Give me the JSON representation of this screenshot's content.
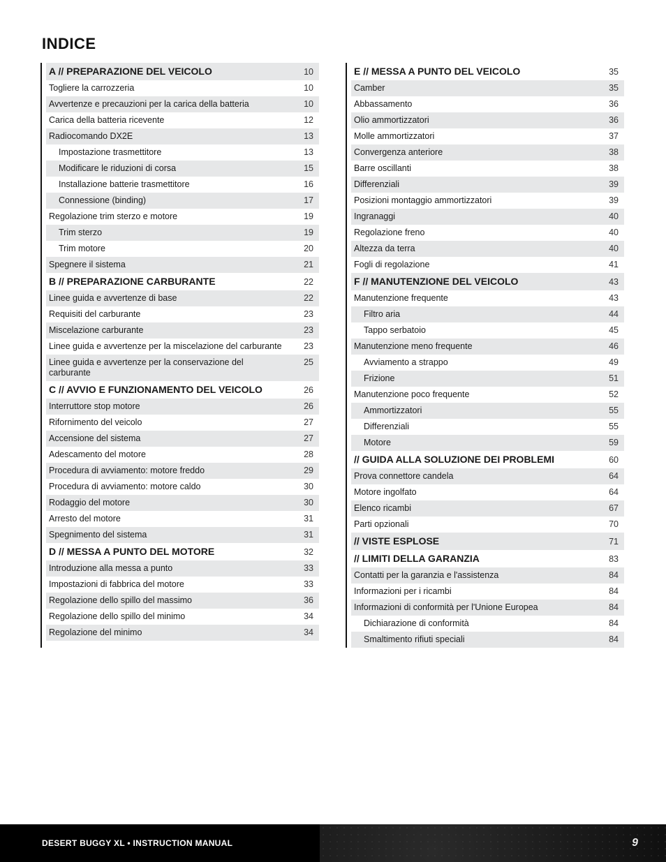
{
  "title": "INDICE",
  "footer": {
    "left": "DESERT BUGGY XL • INSTRUCTION MANUAL",
    "page": "9"
  },
  "left": [
    {
      "section": true,
      "shade": true,
      "indent": 0,
      "label": "A // PREPARAZIONE DEL VEICOLO",
      "page": "10"
    },
    {
      "section": false,
      "shade": false,
      "indent": 1,
      "label": "Togliere la carrozzeria",
      "page": "10"
    },
    {
      "section": false,
      "shade": true,
      "indent": 1,
      "label": "Avvertenze e precauzioni per la carica della batteria",
      "page": "10"
    },
    {
      "section": false,
      "shade": false,
      "indent": 1,
      "label": "Carica della batteria ricevente",
      "page": "12"
    },
    {
      "section": false,
      "shade": true,
      "indent": 1,
      "label": "Radiocomando DX2E",
      "page": "13"
    },
    {
      "section": false,
      "shade": false,
      "indent": 2,
      "label": "Impostazione trasmettitore",
      "page": "13"
    },
    {
      "section": false,
      "shade": true,
      "indent": 2,
      "label": "Modificare le riduzioni di corsa",
      "page": "15"
    },
    {
      "section": false,
      "shade": false,
      "indent": 2,
      "label": "Installazione batterie trasmettitore",
      "page": "16"
    },
    {
      "section": false,
      "shade": true,
      "indent": 2,
      "label": "Connessione (binding)",
      "page": "17"
    },
    {
      "section": false,
      "shade": false,
      "indent": 1,
      "label": "Regolazione trim sterzo e motore",
      "page": "19"
    },
    {
      "section": false,
      "shade": true,
      "indent": 2,
      "label": "Trim sterzo",
      "page": "19"
    },
    {
      "section": false,
      "shade": false,
      "indent": 2,
      "label": "Trim motore",
      "page": "20"
    },
    {
      "section": false,
      "shade": true,
      "indent": 1,
      "label": "Spegnere il sistema",
      "page": "21"
    },
    {
      "section": true,
      "shade": false,
      "indent": 0,
      "label": "B // PREPARAZIONE CARBURANTE",
      "page": "22"
    },
    {
      "section": false,
      "shade": true,
      "indent": 1,
      "label": "Linee guida e avvertenze di base",
      "page": "22"
    },
    {
      "section": false,
      "shade": false,
      "indent": 1,
      "label": "Requisiti del carburante",
      "page": "23"
    },
    {
      "section": false,
      "shade": true,
      "indent": 1,
      "label": "Miscelazione carburante",
      "page": "23"
    },
    {
      "section": false,
      "shade": false,
      "indent": 1,
      "label": "Linee guida e avvertenze per la miscelazione del carburante",
      "page": "23"
    },
    {
      "section": false,
      "shade": true,
      "indent": 1,
      "label": "Linee guida e avvertenze per la conservazione del carburante",
      "page": "25"
    },
    {
      "section": true,
      "shade": false,
      "indent": 0,
      "label": "C // AVVIO E FUNZIONAMENTO DEL VEICOLO",
      "page": "26"
    },
    {
      "section": false,
      "shade": true,
      "indent": 1,
      "label": "Interruttore stop motore",
      "page": "26"
    },
    {
      "section": false,
      "shade": false,
      "indent": 1,
      "label": "Rifornimento del veicolo",
      "page": "27"
    },
    {
      "section": false,
      "shade": true,
      "indent": 1,
      "label": "Accensione del sistema",
      "page": "27"
    },
    {
      "section": false,
      "shade": false,
      "indent": 1,
      "label": "Adescamento del motore",
      "page": "28"
    },
    {
      "section": false,
      "shade": true,
      "indent": 1,
      "label": "Procedura di avviamento: motore freddo",
      "page": "29"
    },
    {
      "section": false,
      "shade": false,
      "indent": 1,
      "label": "Procedura di avviamento: motore caldo",
      "page": "30"
    },
    {
      "section": false,
      "shade": true,
      "indent": 1,
      "label": "Rodaggio del motore",
      "page": "30"
    },
    {
      "section": false,
      "shade": false,
      "indent": 1,
      "label": "Arresto del motore",
      "page": "31"
    },
    {
      "section": false,
      "shade": true,
      "indent": 1,
      "label": "Spegnimento del sistema",
      "page": "31"
    },
    {
      "section": true,
      "shade": false,
      "indent": 0,
      "label": "D // MESSA A PUNTO DEL MOTORE",
      "page": "32"
    },
    {
      "section": false,
      "shade": true,
      "indent": 1,
      "label": "Introduzione alla messa a punto",
      "page": "33"
    },
    {
      "section": false,
      "shade": false,
      "indent": 1,
      "label": "Impostazioni di fabbrica del motore",
      "page": "33"
    },
    {
      "section": false,
      "shade": true,
      "indent": 1,
      "label": "Regolazione dello spillo del massimo",
      "page": "36"
    },
    {
      "section": false,
      "shade": false,
      "indent": 1,
      "label": "Regolazione dello spillo del minimo",
      "page": "34"
    },
    {
      "section": false,
      "shade": true,
      "indent": 1,
      "label": "Regolazione del minimo",
      "page": "34"
    }
  ],
  "right": [
    {
      "section": true,
      "shade": false,
      "indent": 0,
      "label": "E // MESSA A PUNTO DEL VEICOLO",
      "page": "35"
    },
    {
      "section": false,
      "shade": true,
      "indent": 1,
      "label": "Camber",
      "page": "35"
    },
    {
      "section": false,
      "shade": false,
      "indent": 1,
      "label": "Abbassamento",
      "page": "36"
    },
    {
      "section": false,
      "shade": true,
      "indent": 1,
      "label": "Olio ammortizzatori",
      "page": "36"
    },
    {
      "section": false,
      "shade": false,
      "indent": 1,
      "label": "Molle ammortizzatori",
      "page": "37"
    },
    {
      "section": false,
      "shade": true,
      "indent": 1,
      "label": "Convergenza anteriore",
      "page": "38"
    },
    {
      "section": false,
      "shade": false,
      "indent": 1,
      "label": "Barre oscillanti",
      "page": "38"
    },
    {
      "section": false,
      "shade": true,
      "indent": 1,
      "label": "Differenziali",
      "page": "39"
    },
    {
      "section": false,
      "shade": false,
      "indent": 1,
      "label": "Posizioni montaggio ammortizzatori",
      "page": "39"
    },
    {
      "section": false,
      "shade": true,
      "indent": 1,
      "label": "Ingranaggi",
      "page": "40"
    },
    {
      "section": false,
      "shade": false,
      "indent": 1,
      "label": "Regolazione freno",
      "page": "40"
    },
    {
      "section": false,
      "shade": true,
      "indent": 1,
      "label": "Altezza da terra",
      "page": "40"
    },
    {
      "section": false,
      "shade": false,
      "indent": 1,
      "label": "Fogli di regolazione",
      "page": "41"
    },
    {
      "section": true,
      "shade": true,
      "indent": 0,
      "label": "F // MANUTENZIONE DEL VEICOLO",
      "page": "43"
    },
    {
      "section": false,
      "shade": false,
      "indent": 1,
      "label": "Manutenzione frequente",
      "page": "43"
    },
    {
      "section": false,
      "shade": true,
      "indent": 2,
      "label": "Filtro aria",
      "page": "44"
    },
    {
      "section": false,
      "shade": false,
      "indent": 2,
      "label": "Tappo serbatoio",
      "page": "45"
    },
    {
      "section": false,
      "shade": true,
      "indent": 1,
      "label": "Manutenzione meno frequente",
      "page": "46"
    },
    {
      "section": false,
      "shade": false,
      "indent": 2,
      "label": "Avviamento a strappo",
      "page": "49"
    },
    {
      "section": false,
      "shade": true,
      "indent": 2,
      "label": "Frizione",
      "page": "51"
    },
    {
      "section": false,
      "shade": false,
      "indent": 1,
      "label": "Manutenzione poco frequente",
      "page": "52"
    },
    {
      "section": false,
      "shade": true,
      "indent": 2,
      "label": "Ammortizzatori",
      "page": "55"
    },
    {
      "section": false,
      "shade": false,
      "indent": 2,
      "label": "Differenziali",
      "page": "55"
    },
    {
      "section": false,
      "shade": true,
      "indent": 2,
      "label": "Motore",
      "page": "59"
    },
    {
      "section": true,
      "shade": false,
      "indent": 0,
      "label": "// GUIDA ALLA SOLUZIONE DEI PROBLEMI",
      "page": "60"
    },
    {
      "section": false,
      "shade": true,
      "indent": 1,
      "label": "Prova connettore candela",
      "page": "64"
    },
    {
      "section": false,
      "shade": false,
      "indent": 1,
      "label": "Motore ingolfato",
      "page": "64"
    },
    {
      "section": false,
      "shade": true,
      "indent": 1,
      "label": "Elenco ricambi",
      "page": "67"
    },
    {
      "section": false,
      "shade": false,
      "indent": 1,
      "label": "Parti opzionali",
      "page": "70"
    },
    {
      "section": true,
      "shade": true,
      "indent": 0,
      "label": "// VISTE ESPLOSE",
      "page": "71"
    },
    {
      "section": true,
      "shade": false,
      "indent": 0,
      "label": "// LIMITI DELLA GARANZIA",
      "page": "83"
    },
    {
      "section": false,
      "shade": true,
      "indent": 1,
      "label": "Contatti per la garanzia e l'assistenza",
      "page": "84"
    },
    {
      "section": false,
      "shade": false,
      "indent": 1,
      "label": "Informazioni per i ricambi",
      "page": "84"
    },
    {
      "section": false,
      "shade": true,
      "indent": 1,
      "label": "Informazioni di conformità per l'Unione Europea",
      "page": "84"
    },
    {
      "section": false,
      "shade": false,
      "indent": 2,
      "label": "Dichiarazione di conformità",
      "page": "84"
    },
    {
      "section": false,
      "shade": true,
      "indent": 2,
      "label": "Smaltimento rifiuti speciali",
      "page": "84"
    }
  ]
}
